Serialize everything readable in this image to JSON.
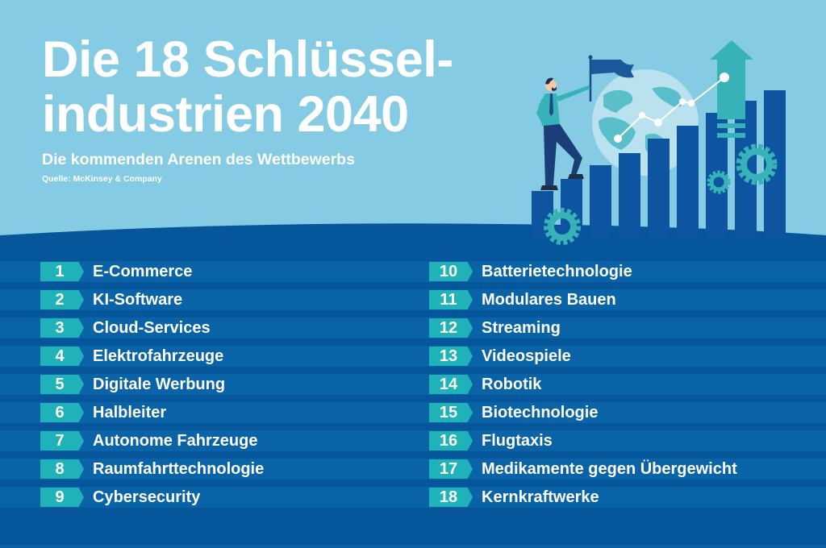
{
  "header": {
    "title_line1": "Die 18 Schlüssel-",
    "title_line2": "industrien 2040",
    "subtitle": "Die kommenden Arenen des Wettbewerbs",
    "source": "Quelle: McKinsey & Company"
  },
  "colors": {
    "header_bg": "#85cbe3",
    "body_bg": "#05569a",
    "row_stripe": "#0a63a6",
    "badge": "#1fb3b9",
    "text": "#ffffff",
    "bar": "#0d55a0",
    "globe": "#b9e1ee",
    "land": "#5bbfcb",
    "gear": "#36b2b8"
  },
  "illustration": {
    "description": "businessman with flag climbing rising bar chart, globe, upward arrow, gears",
    "icons": [
      "person-icon",
      "flag-icon",
      "globe-icon",
      "bar-chart-icon",
      "arrow-up-icon",
      "gear-icon",
      "trend-line-icon"
    ]
  },
  "list": {
    "left": [
      {
        "rank": "1",
        "name": "E-Commerce"
      },
      {
        "rank": "2",
        "name": "KI-Software"
      },
      {
        "rank": "3",
        "name": "Cloud-Services"
      },
      {
        "rank": "4",
        "name": "Elektrofahrzeuge"
      },
      {
        "rank": "5",
        "name": "Digitale Werbung"
      },
      {
        "rank": "6",
        "name": "Halbleiter"
      },
      {
        "rank": "7",
        "name": "Autonome Fahrzeuge"
      },
      {
        "rank": "8",
        "name": "Raumfahrttechnologie"
      },
      {
        "rank": "9",
        "name": "Cybersecurity"
      }
    ],
    "right": [
      {
        "rank": "10",
        "name": "Batterietechnologie"
      },
      {
        "rank": "11",
        "name": "Modulares Bauen"
      },
      {
        "rank": "12",
        "name": "Streaming"
      },
      {
        "rank": "13",
        "name": "Videospiele"
      },
      {
        "rank": "14",
        "name": "Robotik"
      },
      {
        "rank": "15",
        "name": "Biotechnologie"
      },
      {
        "rank": "16",
        "name": "Flugtaxis"
      },
      {
        "rank": "17",
        "name": "Medikamente gegen Übergewicht"
      },
      {
        "rank": "18",
        "name": "Kernkraftwerke"
      }
    ]
  }
}
